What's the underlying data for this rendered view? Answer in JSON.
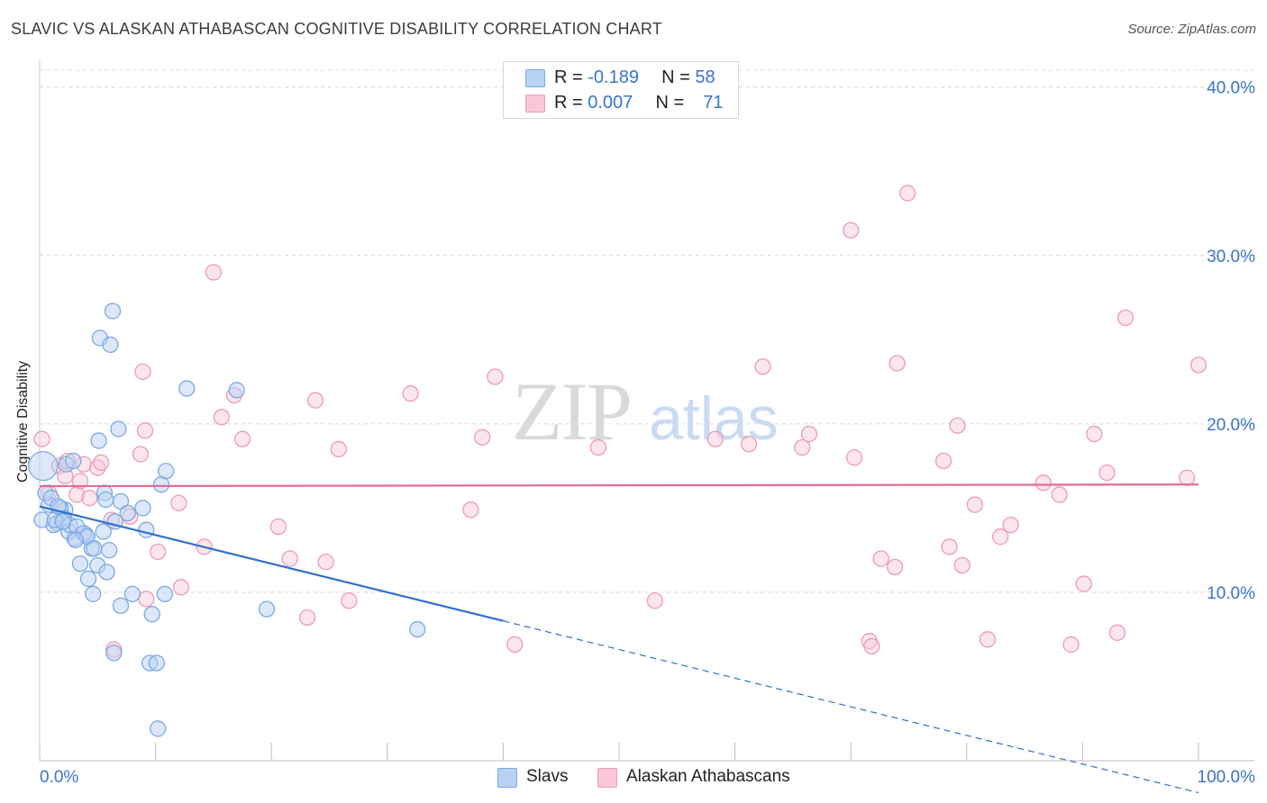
{
  "chart_data": {
    "type": "scatter",
    "title": "SLAVIC VS ALASKAN ATHABASCAN COGNITIVE DISABILITY CORRELATION CHART",
    "source": "Source: ZipAtlas.com",
    "ylabel": "Cognitive Disability",
    "xlabel": "",
    "xlim": [
      0,
      100
    ],
    "ylim": [
      0,
      41
    ],
    "x_tick_labels": {
      "min": "0.0%",
      "max": "100.0%"
    },
    "y_ticks": [
      {
        "value": 10,
        "label": "10.0%"
      },
      {
        "value": 20,
        "label": "20.0%"
      },
      {
        "value": 30,
        "label": "30.0%"
      },
      {
        "value": 40,
        "label": "40.0%"
      }
    ],
    "watermark": {
      "zip": "ZIP",
      "atlas": "atlas"
    },
    "legend": [
      {
        "r_label": "R =",
        "r_value": "-0.189",
        "n_label": "N =",
        "n_value": "58"
      },
      {
        "r_label": "R =",
        "r_value": "0.007",
        "n_label": "N =",
        "n_value": "71"
      }
    ],
    "series": [
      {
        "name": "Slavs",
        "color": "#7aa9e6",
        "fill": "#b9d2f3",
        "line_color": "#2f6fcf",
        "trend": {
          "x1": 0,
          "y1": 15.1,
          "x2": 40,
          "y2": 8.3,
          "dash_x2": 100,
          "dash_y2": -1.9
        },
        "points": [
          [
            0.3,
            17.5
          ],
          [
            0.8,
            15.2
          ],
          [
            1.5,
            14.1
          ],
          [
            2.2,
            14.9
          ],
          [
            3.0,
            13.2
          ],
          [
            1.2,
            14.0
          ],
          [
            2.5,
            13.6
          ],
          [
            4.0,
            13.4
          ],
          [
            5.5,
            13.6
          ],
          [
            4.5,
            12.6
          ],
          [
            6.0,
            12.5
          ],
          [
            3.5,
            11.7
          ],
          [
            5.0,
            11.6
          ],
          [
            4.2,
            10.8
          ],
          [
            5.8,
            11.2
          ],
          [
            4.6,
            9.9
          ],
          [
            7.0,
            9.2
          ],
          [
            8.0,
            9.9
          ],
          [
            9.7,
            8.7
          ],
          [
            10.8,
            9.9
          ],
          [
            9.5,
            5.8
          ],
          [
            10.1,
            5.8
          ],
          [
            10.2,
            1.9
          ],
          [
            6.3,
            26.7
          ],
          [
            5.2,
            25.1
          ],
          [
            6.1,
            24.7
          ],
          [
            12.7,
            22.1
          ],
          [
            17.0,
            22.0
          ],
          [
            6.8,
            19.7
          ],
          [
            5.1,
            19.0
          ],
          [
            10.5,
            16.4
          ],
          [
            10.9,
            17.2
          ],
          [
            2.3,
            17.6
          ],
          [
            2.9,
            17.8
          ],
          [
            0.5,
            15.9
          ],
          [
            1.0,
            15.6
          ],
          [
            1.8,
            15.0
          ],
          [
            2.1,
            14.4
          ],
          [
            2.6,
            14.0
          ],
          [
            3.2,
            13.9
          ],
          [
            3.8,
            13.5
          ],
          [
            4.1,
            13.3
          ],
          [
            5.6,
            15.9
          ],
          [
            5.7,
            15.5
          ],
          [
            6.5,
            14.2
          ],
          [
            7.0,
            15.4
          ],
          [
            8.9,
            15.0
          ],
          [
            9.2,
            13.7
          ],
          [
            7.6,
            14.7
          ],
          [
            19.6,
            9.0
          ],
          [
            32.6,
            7.8
          ],
          [
            6.4,
            6.4
          ],
          [
            0.2,
            14.3
          ],
          [
            1.3,
            14.3
          ],
          [
            3.1,
            13.1
          ],
          [
            4.7,
            12.6
          ],
          [
            2.0,
            14.2
          ],
          [
            1.6,
            15.1
          ]
        ]
      },
      {
        "name": "Alaskan Athabascans",
        "color": "#ee9ab5",
        "fill": "#f9c7d7",
        "line_color": "#e06b92",
        "trend": {
          "x1": 0,
          "y1": 16.3,
          "x2": 100,
          "y2": 16.4
        },
        "points": [
          [
            0.2,
            19.1
          ],
          [
            0.8,
            15.9
          ],
          [
            1.7,
            17.5
          ],
          [
            2.2,
            16.9
          ],
          [
            2.4,
            17.8
          ],
          [
            3.2,
            15.8
          ],
          [
            3.5,
            16.6
          ],
          [
            3.8,
            17.6
          ],
          [
            4.3,
            15.6
          ],
          [
            5.0,
            17.4
          ],
          [
            5.3,
            17.7
          ],
          [
            6.2,
            14.3
          ],
          [
            6.4,
            6.6
          ],
          [
            7.8,
            14.5
          ],
          [
            8.7,
            18.2
          ],
          [
            8.9,
            23.1
          ],
          [
            9.1,
            19.6
          ],
          [
            9.2,
            9.6
          ],
          [
            10.2,
            12.4
          ],
          [
            12.2,
            10.3
          ],
          [
            12.0,
            15.3
          ],
          [
            14.2,
            12.7
          ],
          [
            15.0,
            29.0
          ],
          [
            15.7,
            20.4
          ],
          [
            16.8,
            21.7
          ],
          [
            17.5,
            19.1
          ],
          [
            20.6,
            13.9
          ],
          [
            21.6,
            12.0
          ],
          [
            23.1,
            8.5
          ],
          [
            23.8,
            21.4
          ],
          [
            24.7,
            11.8
          ],
          [
            25.8,
            18.5
          ],
          [
            26.7,
            9.5
          ],
          [
            32.0,
            21.8
          ],
          [
            37.2,
            14.9
          ],
          [
            38.2,
            19.2
          ],
          [
            39.3,
            22.8
          ],
          [
            41.0,
            6.9
          ],
          [
            48.2,
            18.6
          ],
          [
            53.1,
            9.5
          ],
          [
            58.3,
            19.1
          ],
          [
            61.2,
            18.8
          ],
          [
            62.4,
            23.4
          ],
          [
            65.8,
            18.6
          ],
          [
            66.4,
            19.4
          ],
          [
            70.0,
            31.5
          ],
          [
            70.3,
            18.0
          ],
          [
            71.6,
            7.1
          ],
          [
            71.8,
            6.8
          ],
          [
            72.6,
            12.0
          ],
          [
            73.8,
            11.5
          ],
          [
            74.0,
            23.6
          ],
          [
            74.9,
            33.7
          ],
          [
            78.0,
            17.8
          ],
          [
            78.5,
            12.7
          ],
          [
            79.2,
            19.9
          ],
          [
            79.6,
            11.6
          ],
          [
            80.7,
            15.2
          ],
          [
            81.8,
            7.2
          ],
          [
            82.9,
            13.3
          ],
          [
            83.8,
            14.0
          ],
          [
            86.6,
            16.5
          ],
          [
            88.0,
            15.8
          ],
          [
            89.0,
            6.9
          ],
          [
            90.1,
            10.5
          ],
          [
            91.0,
            19.4
          ],
          [
            92.1,
            17.1
          ],
          [
            93.0,
            7.6
          ],
          [
            93.7,
            26.3
          ],
          [
            99.0,
            16.8
          ],
          [
            100.0,
            23.5
          ]
        ]
      }
    ]
  },
  "bottom_legend": {
    "slavs": "Slavs",
    "athabascans": "Alaskan Athabascans"
  }
}
